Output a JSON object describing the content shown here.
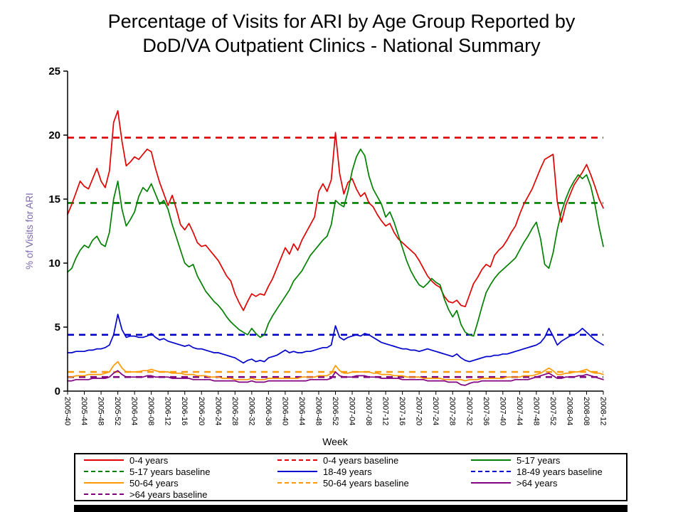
{
  "title": {
    "line1": "Percentage of Visits for ARI by Age Group Reported by",
    "line2": "DoD/VA Outpatient Clinics - National Summary"
  },
  "colors": {
    "red": "#e00000",
    "green": "#008000",
    "blue": "#0000cc",
    "orange": "#ff9900",
    "purple": "#800080",
    "ylabel_color": "#7b68ae",
    "axis": "#000000"
  },
  "chart_data": {
    "type": "line",
    "title": "Percentage of Visits for ARI by Age Group Reported by DoD/VA Outpatient Clinics - National Summary",
    "xlabel": "Week",
    "ylabel": "% of Visits for ARI",
    "ylim": [
      0,
      25
    ],
    "yticks": [
      0,
      5,
      10,
      15,
      20,
      25
    ],
    "n_points": 129,
    "x_tick_every": 4,
    "x_tick_labels": [
      "2005-40",
      "2005-44",
      "2005-48",
      "2005-52",
      "2006-04",
      "2006-08",
      "2006-12",
      "2006-16",
      "2006-20",
      "2006-24",
      "2006-28",
      "2006-32",
      "2006-36",
      "2006-40",
      "2006-44",
      "2006-48",
      "2006-52",
      "2007-04",
      "2007-08",
      "2007-12",
      "2007-16",
      "2007-20",
      "2007-24",
      "2007-28",
      "2007-32",
      "2007-36",
      "2007-40",
      "2007-44",
      "2007-48",
      "2007-52",
      "2008-04",
      "2008-08",
      "2008-12"
    ],
    "series": [
      {
        "name": "0-4 years",
        "color": "#e00000",
        "values": [
          13.8,
          14.6,
          15.5,
          16.4,
          16.0,
          15.8,
          16.6,
          17.4,
          16.4,
          15.9,
          17.2,
          21.0,
          21.9,
          19.5,
          17.6,
          17.9,
          18.3,
          18.1,
          18.5,
          18.9,
          18.7,
          17.4,
          16.3,
          15.4,
          14.5,
          15.3,
          14.2,
          13.0,
          12.6,
          13.1,
          12.4,
          11.6,
          11.3,
          11.4,
          11.0,
          10.6,
          10.2,
          9.6,
          9.0,
          8.6,
          7.6,
          6.9,
          6.3,
          7.0,
          7.6,
          7.4,
          7.6,
          7.5,
          8.2,
          8.8,
          9.6,
          10.4,
          11.2,
          10.7,
          11.5,
          11.0,
          11.8,
          12.4,
          13.0,
          13.6,
          15.6,
          16.2,
          15.6,
          16.5,
          20.2,
          17.0,
          15.4,
          16.3,
          16.6,
          15.8,
          15.2,
          15.5,
          14.7,
          14.4,
          13.8,
          13.3,
          12.9,
          13.1,
          12.4,
          11.9,
          11.6,
          11.3,
          11.0,
          10.7,
          10.2,
          9.6,
          9.0,
          8.6,
          8.3,
          8.1,
          7.4,
          7.0,
          6.9,
          7.1,
          6.7,
          6.6,
          7.5,
          8.4,
          8.9,
          9.5,
          9.9,
          9.7,
          10.6,
          11.0,
          11.3,
          11.8,
          12.4,
          12.9,
          13.8,
          14.6,
          15.2,
          15.8,
          16.6,
          17.4,
          18.1,
          18.3,
          18.5,
          14.8,
          13.2,
          14.5,
          15.3,
          16.1,
          16.6,
          17.1,
          17.7,
          16.9,
          16.0,
          15.0,
          14.3
        ]
      },
      {
        "name": "5-17 years",
        "color": "#008000",
        "values": [
          9.3,
          9.6,
          10.4,
          11.0,
          11.4,
          11.2,
          11.8,
          12.1,
          11.5,
          11.3,
          12.4,
          15.0,
          16.4,
          14.2,
          12.9,
          13.4,
          14.0,
          15.2,
          15.9,
          15.6,
          16.2,
          15.4,
          14.6,
          14.9,
          14.2,
          13.0,
          12.0,
          11.0,
          10.0,
          9.7,
          9.9,
          9.0,
          8.4,
          7.8,
          7.4,
          7.0,
          6.7,
          6.3,
          5.8,
          5.4,
          5.1,
          4.8,
          4.6,
          4.4,
          4.9,
          4.5,
          4.2,
          4.4,
          5.3,
          5.9,
          6.4,
          6.9,
          7.4,
          7.9,
          8.6,
          9.0,
          9.4,
          10.0,
          10.6,
          11.0,
          11.4,
          11.8,
          12.1,
          13.0,
          14.9,
          14.6,
          14.4,
          15.6,
          17.2,
          18.3,
          18.9,
          18.4,
          16.8,
          15.8,
          15.2,
          14.6,
          13.6,
          14.0,
          13.2,
          12.2,
          11.2,
          10.2,
          9.4,
          8.8,
          8.3,
          8.1,
          8.4,
          8.8,
          8.5,
          8.3,
          7.2,
          6.4,
          5.8,
          6.3,
          5.2,
          4.6,
          4.4,
          4.3,
          5.4,
          6.6,
          7.7,
          8.3,
          8.8,
          9.2,
          9.5,
          9.8,
          10.1,
          10.4,
          11.0,
          11.6,
          12.1,
          12.7,
          13.2,
          11.9,
          9.9,
          9.6,
          10.8,
          12.6,
          14.0,
          15.0,
          15.8,
          16.4,
          16.9,
          16.6,
          16.9,
          16.0,
          14.6,
          12.8,
          11.3
        ]
      },
      {
        "name": "18-49 years",
        "color": "#0000cc",
        "values": [
          3.0,
          3.0,
          3.1,
          3.1,
          3.1,
          3.2,
          3.2,
          3.3,
          3.3,
          3.4,
          3.6,
          4.4,
          6.0,
          4.8,
          4.2,
          4.3,
          4.3,
          4.2,
          4.2,
          4.3,
          4.5,
          4.2,
          4.0,
          4.1,
          3.9,
          3.8,
          3.7,
          3.6,
          3.5,
          3.6,
          3.4,
          3.3,
          3.3,
          3.2,
          3.1,
          3.0,
          3.0,
          2.9,
          2.8,
          2.7,
          2.6,
          2.4,
          2.2,
          2.4,
          2.5,
          2.3,
          2.4,
          2.3,
          2.6,
          2.7,
          2.8,
          3.0,
          3.2,
          3.0,
          3.1,
          3.0,
          3.0,
          3.1,
          3.1,
          3.2,
          3.3,
          3.4,
          3.4,
          3.6,
          5.1,
          4.2,
          4.0,
          4.2,
          4.3,
          4.4,
          4.3,
          4.5,
          4.4,
          4.2,
          4.0,
          3.8,
          3.7,
          3.6,
          3.5,
          3.4,
          3.3,
          3.3,
          3.2,
          3.2,
          3.1,
          3.2,
          3.3,
          3.2,
          3.1,
          3.0,
          2.9,
          2.8,
          2.7,
          2.9,
          2.6,
          2.4,
          2.3,
          2.4,
          2.5,
          2.6,
          2.7,
          2.7,
          2.8,
          2.8,
          2.9,
          2.9,
          3.0,
          3.1,
          3.2,
          3.3,
          3.4,
          3.5,
          3.6,
          3.8,
          4.2,
          4.9,
          4.3,
          3.6,
          3.9,
          4.1,
          4.3,
          4.4,
          4.6,
          4.9,
          4.6,
          4.3,
          4.0,
          3.8,
          3.6
        ]
      },
      {
        "name": "50-64 years",
        "color": "#ff9900",
        "values": [
          1.1,
          1.1,
          1.2,
          1.2,
          1.2,
          1.3,
          1.3,
          1.3,
          1.3,
          1.4,
          1.5,
          2.0,
          2.3,
          1.8,
          1.5,
          1.5,
          1.5,
          1.5,
          1.6,
          1.6,
          1.7,
          1.6,
          1.5,
          1.5,
          1.5,
          1.4,
          1.4,
          1.4,
          1.3,
          1.3,
          1.3,
          1.2,
          1.2,
          1.2,
          1.1,
          1.1,
          1.1,
          1.0,
          1.0,
          1.0,
          0.9,
          0.9,
          0.9,
          0.9,
          1.0,
          0.9,
          0.9,
          0.9,
          1.0,
          1.0,
          1.0,
          1.0,
          1.0,
          1.0,
          1.0,
          1.0,
          1.1,
          1.1,
          1.1,
          1.1,
          1.2,
          1.2,
          1.2,
          1.4,
          2.0,
          1.6,
          1.4,
          1.4,
          1.5,
          1.5,
          1.5,
          1.5,
          1.5,
          1.4,
          1.4,
          1.3,
          1.3,
          1.3,
          1.2,
          1.2,
          1.2,
          1.1,
          1.1,
          1.1,
          1.1,
          1.0,
          1.0,
          1.0,
          1.0,
          1.0,
          0.9,
          0.9,
          0.9,
          0.9,
          0.9,
          0.8,
          0.9,
          0.9,
          0.9,
          1.0,
          1.0,
          1.0,
          1.0,
          1.0,
          1.0,
          1.1,
          1.1,
          1.1,
          1.1,
          1.2,
          1.2,
          1.2,
          1.3,
          1.4,
          1.6,
          1.8,
          1.6,
          1.3,
          1.3,
          1.4,
          1.4,
          1.5,
          1.5,
          1.6,
          1.7,
          1.5,
          1.4,
          1.4,
          1.3
        ]
      },
      {
        "name": ">64 years",
        "color": "#800080",
        "values": [
          0.8,
          0.8,
          0.9,
          0.9,
          0.9,
          0.9,
          1.0,
          1.0,
          1.0,
          1.0,
          1.1,
          1.4,
          1.6,
          1.3,
          1.1,
          1.1,
          1.1,
          1.1,
          1.1,
          1.2,
          1.2,
          1.1,
          1.1,
          1.1,
          1.1,
          1.0,
          1.0,
          1.0,
          1.0,
          1.0,
          0.9,
          0.9,
          0.9,
          0.9,
          0.9,
          0.8,
          0.8,
          0.8,
          0.8,
          0.8,
          0.8,
          0.7,
          0.7,
          0.7,
          0.8,
          0.7,
          0.7,
          0.7,
          0.8,
          0.8,
          0.8,
          0.8,
          0.8,
          0.8,
          0.8,
          0.8,
          0.8,
          0.8,
          0.9,
          0.9,
          0.9,
          0.9,
          0.9,
          1.0,
          1.5,
          1.2,
          1.1,
          1.1,
          1.1,
          1.2,
          1.2,
          1.2,
          1.1,
          1.1,
          1.1,
          1.0,
          1.0,
          1.0,
          1.0,
          1.0,
          0.9,
          0.9,
          0.9,
          0.9,
          0.9,
          0.9,
          0.8,
          0.8,
          0.8,
          0.8,
          0.8,
          0.7,
          0.7,
          0.7,
          0.5,
          0.45,
          0.6,
          0.7,
          0.7,
          0.8,
          0.8,
          0.8,
          0.8,
          0.8,
          0.8,
          0.8,
          0.8,
          0.9,
          0.9,
          0.9,
          0.9,
          1.0,
          1.1,
          1.2,
          1.3,
          1.4,
          1.2,
          1.0,
          1.0,
          1.1,
          1.1,
          1.1,
          1.2,
          1.2,
          1.3,
          1.2,
          1.1,
          1.0,
          0.9
        ]
      }
    ],
    "baselines": [
      {
        "name": "0-4 years baseline",
        "color": "#e00000",
        "value": 19.8
      },
      {
        "name": "5-17 years baseline",
        "color": "#008000",
        "value": 14.7
      },
      {
        "name": "18-49 years baseline",
        "color": "#0000cc",
        "value": 4.4
      },
      {
        "name": "50-64 years baseline",
        "color": "#ff9900",
        "value": 1.5
      },
      {
        "name": ">64 years baseline",
        "color": "#800080",
        "value": 1.1
      }
    ],
    "legend": [
      {
        "label": "0-4 years",
        "color": "#e00000",
        "dashed": false
      },
      {
        "label": "0-4 years baseline",
        "color": "#e00000",
        "dashed": true
      },
      {
        "label": "5-17 years",
        "color": "#008000",
        "dashed": false
      },
      {
        "label": "5-17 years baseline",
        "color": "#008000",
        "dashed": true
      },
      {
        "label": "18-49 years",
        "color": "#0000cc",
        "dashed": false
      },
      {
        "label": "18-49 years baseline",
        "color": "#0000cc",
        "dashed": true
      },
      {
        "label": "50-64 years",
        "color": "#ff9900",
        "dashed": false
      },
      {
        "label": "50-64 years baseline",
        "color": "#ff9900",
        "dashed": true
      },
      {
        "label": ">64 years",
        "color": "#800080",
        "dashed": false
      },
      {
        "label": ">64 years baseline",
        "color": "#800080",
        "dashed": true
      }
    ],
    "legend_position": "bottom",
    "grid": false
  }
}
